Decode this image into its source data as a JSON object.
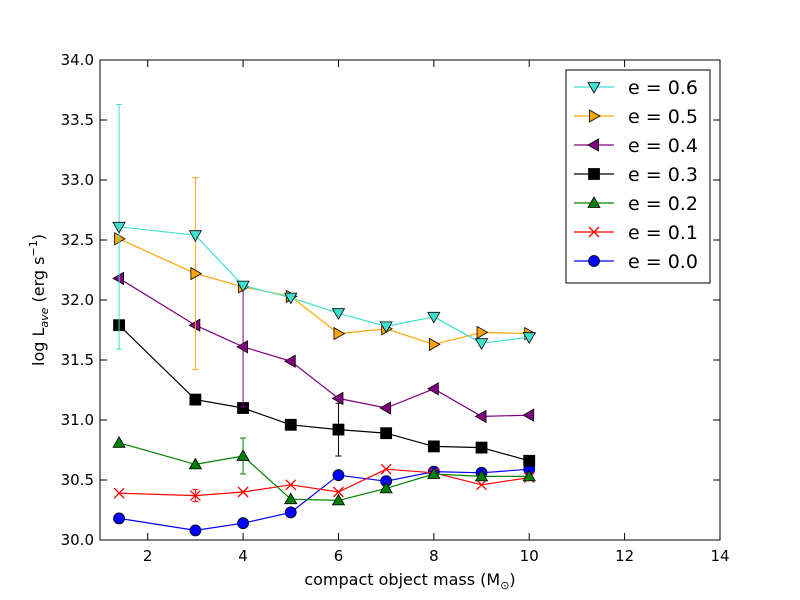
{
  "chart_data": {
    "type": "line",
    "title": "",
    "xlabel": "compact object mass (M",
    "xlabel_sub": "⊙",
    "xlabel_end": ")",
    "ylabel_main": "log L",
    "ylabel_sub": "ave",
    "ylabel_units": " (erg s",
    "ylabel_exp": "−1",
    "ylabel_end": ")",
    "xlim": [
      1,
      14
    ],
    "ylim": [
      30.0,
      34.0
    ],
    "xticks": [
      2,
      4,
      6,
      8,
      10,
      12,
      14
    ],
    "yticks": [
      30.0,
      30.5,
      31.0,
      31.5,
      32.0,
      32.5,
      33.0,
      33.5,
      34.0
    ],
    "xtick_labels": [
      "2",
      "4",
      "6",
      "8",
      "10",
      "12",
      "14"
    ],
    "ytick_labels": [
      "30.0",
      "30.5",
      "31.0",
      "31.5",
      "32.0",
      "32.5",
      "33.0",
      "33.5",
      "34.0"
    ],
    "grid": false,
    "legend_position": "top-right",
    "x": [
      1.4,
      3,
      4,
      5,
      6,
      7,
      8,
      9,
      10
    ],
    "series": [
      {
        "name": "e = 0.6",
        "color": "#40E0D0",
        "marker": "triangle-down",
        "values": [
          32.61,
          32.54,
          32.12,
          32.02,
          31.89,
          31.78,
          31.86,
          31.64,
          31.69
        ],
        "errors": [
          1.02,
          0,
          0,
          0,
          0,
          0,
          0,
          0,
          0
        ]
      },
      {
        "name": "e = 0.5",
        "color": "#FFA500",
        "marker": "triangle-right",
        "values": [
          32.51,
          32.22,
          32.11,
          32.03,
          31.72,
          31.76,
          31.63,
          31.73,
          31.72
        ],
        "errors": [
          0,
          0.8,
          0,
          0,
          0,
          0,
          0,
          0,
          0
        ]
      },
      {
        "name": "e = 0.4",
        "color": "#800080",
        "marker": "triangle-left",
        "values": [
          32.18,
          31.79,
          31.61,
          31.49,
          31.18,
          31.1,
          31.26,
          31.03,
          31.04
        ],
        "errors": [
          0,
          0,
          0.5,
          0,
          0,
          0,
          0,
          0,
          0
        ]
      },
      {
        "name": "e = 0.3",
        "color": "#000000",
        "marker": "square",
        "values": [
          31.79,
          31.17,
          31.1,
          30.96,
          30.92,
          30.89,
          30.78,
          30.77,
          30.66
        ],
        "errors": [
          0,
          0,
          0,
          0,
          0.22,
          0,
          0,
          0,
          0
        ]
      },
      {
        "name": "e = 0.2",
        "color": "#008000",
        "marker": "triangle-up",
        "values": [
          30.81,
          30.63,
          30.7,
          30.34,
          30.33,
          30.43,
          30.55,
          30.53,
          30.53
        ],
        "errors": [
          0,
          0,
          0.15,
          0,
          0,
          0,
          0,
          0,
          0
        ]
      },
      {
        "name": "e = 0.1",
        "color": "#FF0000",
        "marker": "x",
        "values": [
          30.39,
          30.37,
          30.4,
          30.46,
          30.4,
          30.59,
          30.56,
          30.46,
          30.52
        ],
        "errors": [
          0,
          0.05,
          0,
          0,
          0,
          0,
          0,
          0,
          0
        ]
      },
      {
        "name": "e = 0.0",
        "color": "#0000FF",
        "marker": "circle",
        "values": [
          30.18,
          30.08,
          30.14,
          30.23,
          30.54,
          30.49,
          30.57,
          30.56,
          30.59
        ],
        "errors": [
          0.04,
          0,
          0,
          0,
          0,
          0,
          0,
          0,
          0
        ]
      }
    ]
  }
}
